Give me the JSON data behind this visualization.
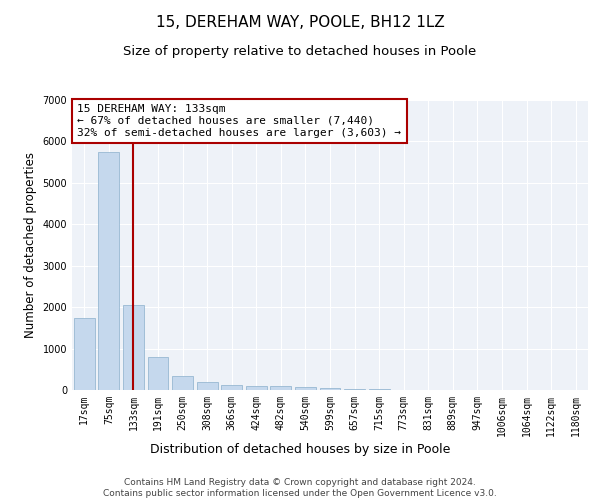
{
  "title": "15, DEREHAM WAY, POOLE, BH12 1LZ",
  "subtitle": "Size of property relative to detached houses in Poole",
  "xlabel": "Distribution of detached houses by size in Poole",
  "ylabel": "Number of detached properties",
  "categories": [
    "17sqm",
    "75sqm",
    "133sqm",
    "191sqm",
    "250sqm",
    "308sqm",
    "366sqm",
    "424sqm",
    "482sqm",
    "540sqm",
    "599sqm",
    "657sqm",
    "715sqm",
    "773sqm",
    "831sqm",
    "889sqm",
    "947sqm",
    "1006sqm",
    "1064sqm",
    "1122sqm",
    "1180sqm"
  ],
  "values": [
    1750,
    5750,
    2050,
    800,
    350,
    200,
    130,
    100,
    100,
    70,
    50,
    30,
    20,
    10,
    5,
    5,
    3,
    2,
    2,
    2,
    2
  ],
  "bar_color": "#c5d8ed",
  "bar_edge_color": "#8ab0cc",
  "highlight_index": 2,
  "highlight_line_color": "#aa0000",
  "annotation_text": "15 DEREHAM WAY: 133sqm\n← 67% of detached houses are smaller (7,440)\n32% of semi-detached houses are larger (3,603) →",
  "annotation_box_color": "#ffffff",
  "annotation_border_color": "#aa0000",
  "ylim": [
    0,
    7000
  ],
  "yticks": [
    0,
    1000,
    2000,
    3000,
    4000,
    5000,
    6000,
    7000
  ],
  "background_color": "#eef2f8",
  "grid_color": "#ffffff",
  "footer_line1": "Contains HM Land Registry data © Crown copyright and database right 2024.",
  "footer_line2": "Contains public sector information licensed under the Open Government Licence v3.0.",
  "title_fontsize": 11,
  "subtitle_fontsize": 9.5,
  "axis_label_fontsize": 8.5,
  "xlabel_fontsize": 9,
  "tick_fontsize": 7,
  "annotation_fontsize": 8,
  "footer_fontsize": 6.5
}
